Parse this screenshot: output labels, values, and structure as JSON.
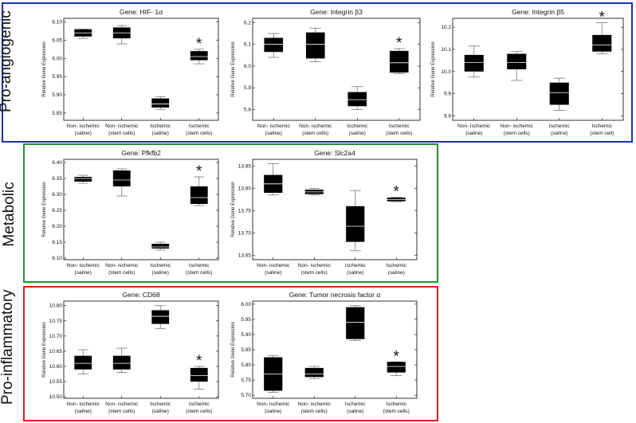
{
  "groups": [
    {
      "label": "Pro-angiogenic",
      "color": "#1f2fb4"
    },
    {
      "label": "Metabolic",
      "color": "#2e8b2e"
    },
    {
      "label": "Pro-inflammatory",
      "color": "#d42020"
    }
  ],
  "colors": {
    "box": "#000000",
    "whisker": "#777777",
    "median": "#ffffff"
  },
  "chart_data": [
    {
      "type": "box",
      "title": "Gene: HIF- 1α",
      "ylabel": "Relative Gene Expression",
      "categories": [
        [
          "Non- ischemic",
          "(saline)"
        ],
        [
          "Non- ischemic",
          "(stem cells)"
        ],
        [
          "Ischemic",
          "(saline)"
        ],
        [
          "Ischemic",
          "(stem cells)"
        ]
      ],
      "ylim": [
        5.83,
        6.11
      ],
      "yticks": [
        "5.85",
        "5.90",
        "5.95",
        "6.00",
        "6.05",
        "6.10"
      ],
      "boxes": [
        {
          "min": 6.055,
          "q1": 6.06,
          "median": 6.07,
          "q3": 6.08,
          "max": 6.08
        },
        {
          "min": 6.04,
          "q1": 6.055,
          "median": 6.07,
          "q3": 6.085,
          "max": 6.09
        },
        {
          "min": 5.86,
          "q1": 5.865,
          "median": 5.875,
          "q3": 5.89,
          "max": 5.895
        },
        {
          "min": 5.985,
          "q1": 5.995,
          "median": 6.005,
          "q3": 6.02,
          "max": 6.025
        }
      ],
      "significant": [
        false,
        false,
        false,
        true
      ],
      "marker": "*"
    },
    {
      "type": "box",
      "title": "Gene: Integrin β3",
      "ylabel": "Relative Gene Expression",
      "categories": [
        [
          "Non- ischemic",
          "(saline)"
        ],
        [
          "Non- ischemic",
          "(stem cells)"
        ],
        [
          "Ischemic",
          "(saline)"
        ],
        [
          "Ischemic",
          "(stem cells)"
        ]
      ],
      "ylim": [
        5.75,
        6.22
      ],
      "yticks": [
        "5.8",
        "5.9",
        "6.0",
        "6.1",
        "6.2"
      ],
      "boxes": [
        {
          "min": 6.04,
          "q1": 6.065,
          "median": 6.1,
          "q3": 6.13,
          "max": 6.15
        },
        {
          "min": 6.02,
          "q1": 6.035,
          "median": 6.1,
          "q3": 6.155,
          "max": 6.175
        },
        {
          "min": 5.8,
          "q1": 5.815,
          "median": 5.845,
          "q3": 5.88,
          "max": 5.905
        },
        {
          "min": 5.965,
          "q1": 5.97,
          "median": 6.015,
          "q3": 6.07,
          "max": 6.08
        }
      ],
      "significant": [
        false,
        false,
        false,
        true
      ],
      "marker": "*"
    },
    {
      "type": "box",
      "title": "Gene: Integrin β5",
      "ylabel": "Relative Gene Expression",
      "categories": [
        [
          "Non- ischemic",
          "(saline)"
        ],
        [
          "Non- ischemic",
          "(stem cells)"
        ],
        [
          "Ischemic",
          "(saline)"
        ],
        [
          "Ischemic",
          "(stem cell)"
        ]
      ],
      "ylim": [
        9.78,
        10.24
      ],
      "yticks": [
        "9.8",
        "9.9",
        "10.0",
        "10.1",
        "10.2"
      ],
      "boxes": [
        {
          "min": 9.975,
          "q1": 10.0,
          "median": 10.04,
          "q3": 10.075,
          "max": 10.115
        },
        {
          "min": 9.96,
          "q1": 10.01,
          "median": 10.04,
          "q3": 10.08,
          "max": 10.09
        },
        {
          "min": 9.825,
          "q1": 9.85,
          "median": 9.905,
          "q3": 9.95,
          "max": 9.97
        },
        {
          "min": 10.08,
          "q1": 10.09,
          "median": 10.12,
          "q3": 10.165,
          "max": 10.22
        }
      ],
      "significant": [
        false,
        false,
        false,
        true
      ],
      "marker": "*"
    },
    {
      "type": "box",
      "title": "Gene: Pfkfb2",
      "ylabel": "Relative Gene Expression",
      "categories": [
        [
          "Non- ischemic",
          "(saline)"
        ],
        [
          "Non- ischemic",
          "(stem cells)"
        ],
        [
          "Ischemic",
          "(saline)"
        ],
        [
          "Ischemic",
          "(stem cells)"
        ]
      ],
      "ylim": [
        6.095,
        6.41
      ],
      "yticks": [
        "6.10",
        "6.15",
        "6.20",
        "6.25",
        "6.30",
        "6.35",
        "6.40"
      ],
      "boxes": [
        {
          "min": 6.335,
          "q1": 6.34,
          "median": 6.35,
          "q3": 6.355,
          "max": 6.36
        },
        {
          "min": 6.295,
          "q1": 6.325,
          "median": 6.345,
          "q3": 6.375,
          "max": 6.38
        },
        {
          "min": 6.125,
          "q1": 6.13,
          "median": 6.135,
          "q3": 6.145,
          "max": 6.15
        },
        {
          "min": 6.265,
          "q1": 6.27,
          "median": 6.29,
          "q3": 6.325,
          "max": 6.355
        }
      ],
      "significant": [
        false,
        false,
        false,
        true
      ],
      "marker": "*"
    },
    {
      "type": "box",
      "title": "Gene: Slc2a4",
      "ylabel": "Relative Gene Expression",
      "categories": [
        [
          "Non- ischemic",
          "(saline)"
        ],
        [
          "Non- ischemic",
          "(stem cells)"
        ],
        [
          "Ischemic",
          "(saline)"
        ],
        [
          "Ischemic",
          "(saline)"
        ]
      ],
      "ylim": [
        13.64,
        13.865
      ],
      "yticks": [
        "13.65",
        "13.70",
        "13.75",
        "13.80",
        "13.85"
      ],
      "boxes": [
        {
          "min": 13.785,
          "q1": 13.79,
          "median": 13.81,
          "q3": 13.83,
          "max": 13.855
        },
        {
          "min": 13.785,
          "q1": 13.787,
          "median": 13.792,
          "q3": 13.797,
          "max": 13.8
        },
        {
          "min": 13.66,
          "q1": 13.68,
          "median": 13.715,
          "q3": 13.76,
          "max": 13.795
        },
        {
          "min": 13.77,
          "q1": 13.771,
          "median": 13.775,
          "q3": 13.779,
          "max": 13.78
        }
      ],
      "significant": [
        false,
        false,
        false,
        true
      ],
      "marker": "*"
    },
    {
      "type": "box",
      "title": "Gene: CD68",
      "ylabel": "Relative Gene Expression",
      "categories": [
        [
          "Non- ischemic",
          "(saline)"
        ],
        [
          "Non- ischemic",
          "(stem cells)"
        ],
        [
          "Ischemic",
          "(saline)"
        ],
        [
          "Ischemic",
          "(stem cells)"
        ]
      ],
      "ylim": [
        10.495,
        10.815
      ],
      "yticks": [
        "10.50",
        "10.55",
        "10.60",
        "10.65",
        "10.70",
        "10.75",
        "10.80"
      ],
      "boxes": [
        {
          "min": 10.575,
          "q1": 10.59,
          "median": 10.61,
          "q3": 10.635,
          "max": 10.655
        },
        {
          "min": 10.58,
          "q1": 10.59,
          "median": 10.61,
          "q3": 10.635,
          "max": 10.66
        },
        {
          "min": 10.725,
          "q1": 10.74,
          "median": 10.765,
          "q3": 10.785,
          "max": 10.8
        },
        {
          "min": 10.525,
          "q1": 10.55,
          "median": 10.57,
          "q3": 10.595,
          "max": 10.6
        }
      ],
      "significant": [
        false,
        false,
        false,
        true
      ],
      "marker": "*"
    },
    {
      "type": "box",
      "title": "Gene: Tumor necrosis factor α",
      "ylabel": "Relative Gene Expression",
      "categories": [
        [
          "Non- ischemic",
          "(saline)"
        ],
        [
          "Non- ischemic",
          "(stem cells)"
        ],
        [
          "Ischemic",
          "(saline)"
        ],
        [
          "Ischemic",
          "(stem cells)"
        ]
      ],
      "ylim": [
        5.69,
        6.01
      ],
      "yticks": [
        "5.70",
        "5.75",
        "5.80",
        "5.85",
        "5.90",
        "5.95",
        "6.00"
      ],
      "boxes": [
        {
          "min": 5.71,
          "q1": 5.715,
          "median": 5.77,
          "q3": 5.825,
          "max": 5.83
        },
        {
          "min": 5.755,
          "q1": 5.76,
          "median": 5.77,
          "q3": 5.79,
          "max": 5.795
        },
        {
          "min": 5.88,
          "q1": 5.885,
          "median": 5.94,
          "q3": 5.99,
          "max": 5.995
        },
        {
          "min": 5.765,
          "q1": 5.775,
          "median": 5.795,
          "q3": 5.81,
          "max": 5.81
        }
      ],
      "significant": [
        false,
        false,
        false,
        true
      ],
      "marker": "*"
    }
  ]
}
